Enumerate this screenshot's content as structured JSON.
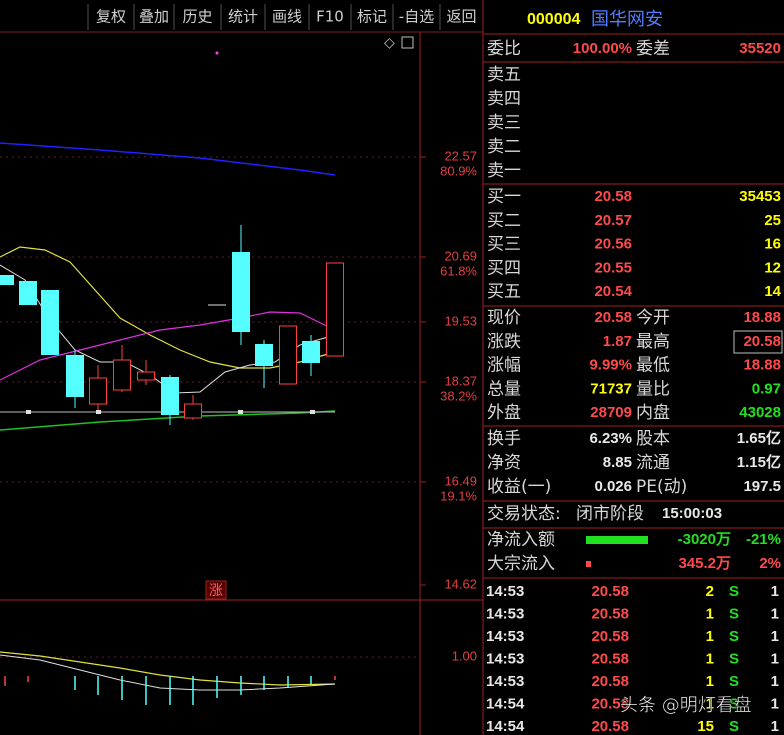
{
  "toolbar": [
    "复权",
    "叠加",
    "历史",
    "统计",
    "画线",
    "F10",
    "标记",
    "-自选",
    "返回"
  ],
  "chart": {
    "price_labels": [
      {
        "price": "22.57",
        "pct": "80.9%"
      },
      {
        "price": "20.69",
        "pct": "61.8%"
      },
      {
        "price": "19.53"
      },
      {
        "price": "18.37",
        "pct": "38.2%"
      },
      {
        "price": "16.49",
        "pct": "19.1%"
      },
      {
        "price": "14.62"
      }
    ],
    "marker": "涨",
    "indicator_label": "1.00"
  },
  "quote": {
    "code": "000004",
    "name": "国华网安",
    "ratio": {
      "label": "委比",
      "value": "100.00%",
      "label2": "委差",
      "value2": "35520"
    },
    "asks": [
      {
        "label": "卖五"
      },
      {
        "label": "卖四"
      },
      {
        "label": "卖三"
      },
      {
        "label": "卖二"
      },
      {
        "label": "卖一"
      }
    ],
    "bids": [
      {
        "label": "买一",
        "price": "20.58",
        "volume": "35453"
      },
      {
        "label": "买二",
        "price": "20.57",
        "volume": "25"
      },
      {
        "label": "买三",
        "price": "20.56",
        "volume": "16"
      },
      {
        "label": "买四",
        "price": "20.55",
        "volume": "12"
      },
      {
        "label": "买五",
        "price": "20.54",
        "volume": "14"
      }
    ],
    "stats": [
      [
        {
          "label": "现价",
          "value": "20.58"
        },
        {
          "label": "今开",
          "value": "18.88"
        }
      ],
      [
        {
          "label": "涨跌",
          "value": "1.87"
        },
        {
          "label": "最高",
          "value": "20.58"
        }
      ],
      [
        {
          "label": "涨幅",
          "value": "9.99%"
        },
        {
          "label": "最低",
          "value": "18.88"
        }
      ],
      [
        {
          "label": "总量",
          "value": "71737"
        },
        {
          "label": "量比",
          "value": "0.97"
        }
      ],
      [
        {
          "label": "外盘",
          "value": "28709"
        },
        {
          "label": "内盘",
          "value": "43028"
        }
      ]
    ],
    "fundamentals": [
      [
        {
          "label": "换手",
          "value": "6.23%"
        },
        {
          "label": "股本",
          "value": "1.65亿"
        }
      ],
      [
        {
          "label": "净资",
          "value": "8.85"
        },
        {
          "label": "流通",
          "value": "1.15亿"
        }
      ],
      [
        {
          "label": "收益(一)",
          "value": "0.026"
        },
        {
          "label": "PE(动)",
          "value": "197.5"
        }
      ]
    ],
    "status": {
      "label": "交易状态:",
      "value": "闭市阶段",
      "time": "15:00:03"
    },
    "flows": [
      {
        "label": "净流入额",
        "value": "-3020万",
        "pct": "-21%"
      },
      {
        "label": "大宗流入",
        "value": "345.2万",
        "pct": "2%"
      }
    ],
    "ticks": [
      [
        "14:53",
        "20.58",
        "2",
        "S",
        "1"
      ],
      [
        "14:53",
        "20.58",
        "1",
        "S",
        "1"
      ],
      [
        "14:53",
        "20.58",
        "1",
        "S",
        "1"
      ],
      [
        "14:53",
        "20.58",
        "1",
        "S",
        "1"
      ],
      [
        "14:53",
        "20.58",
        "1",
        "S",
        "1"
      ],
      [
        "14:54",
        "20.58",
        "1",
        "S",
        "1"
      ],
      [
        "14:54",
        "20.58",
        "15",
        "S",
        "1"
      ]
    ]
  },
  "watermark": "头条 @明灯看盘"
}
